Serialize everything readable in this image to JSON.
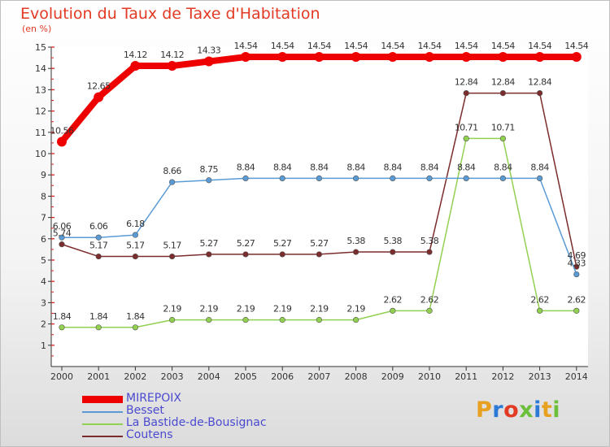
{
  "header": {
    "title": "Evolution du Taux de Taxe d'Habitation",
    "unit": "(en %)"
  },
  "logo": {
    "text": "Proxiti",
    "colors": [
      "#e8a020",
      "#2b7bd6",
      "#e23a24",
      "#6cbf3a",
      "#2b7bd6",
      "#e8a020",
      "#6cbf3a"
    ]
  },
  "chart_data": {
    "type": "line",
    "title": "Evolution du Taux de Taxe d'Habitation",
    "ylabel": "(en %)",
    "xlabel": "",
    "x": [
      "2000",
      "2001",
      "2002",
      "2003",
      "2004",
      "2005",
      "2006",
      "2007",
      "2008",
      "2009",
      "2010",
      "2011",
      "2012",
      "2013",
      "2014"
    ],
    "ylim": [
      0,
      15
    ],
    "yticks": [
      1,
      2,
      3,
      4,
      5,
      6,
      7,
      8,
      9,
      10,
      11,
      12,
      13,
      14,
      15
    ],
    "grid": false,
    "legend": "bottom-left",
    "series": [
      {
        "name": "MIREPOIX",
        "color": "#ee0000",
        "values": [
          10.56,
          12.65,
          14.12,
          14.12,
          14.33,
          14.54,
          14.54,
          14.54,
          14.54,
          14.54,
          14.54,
          14.54,
          14.54,
          14.54,
          14.54
        ],
        "labels": [
          "10.56",
          "12.65",
          "14.12",
          "14.12",
          "14.33",
          "14.54",
          "14.54",
          "14.54",
          "14.54",
          "14.54",
          "14.54",
          "14.54",
          "14.54",
          "14.54",
          "14.54"
        ]
      },
      {
        "name": "Besset",
        "color": "#5b9bd5",
        "values": [
          6.06,
          6.06,
          6.18,
          8.66,
          8.75,
          8.84,
          8.84,
          8.84,
          8.84,
          8.84,
          8.84,
          8.84,
          8.84,
          8.84,
          4.33
        ],
        "labels": [
          "6.06",
          "6.06",
          "6.18",
          "8.66",
          "8.75",
          "8.84",
          "8.84",
          "8.84",
          "8.84",
          "8.84",
          "8.84",
          "8.84",
          "8.84",
          "8.84",
          "4.33"
        ]
      },
      {
        "name": "La Bastide-de-Bousignac",
        "color": "#92d050",
        "values": [
          1.84,
          1.84,
          1.84,
          2.19,
          2.19,
          2.19,
          2.19,
          2.19,
          2.19,
          2.62,
          2.62,
          10.71,
          10.71,
          2.62,
          2.62
        ],
        "labels": [
          "1.84",
          "1.84",
          "1.84",
          "2.19",
          "2.19",
          "2.19",
          "2.19",
          "2.19",
          "2.19",
          "2.62",
          "2.62",
          "10.71",
          "10.71",
          "2.62",
          "2.62"
        ]
      },
      {
        "name": "Coutens",
        "color": "#7b2c2c",
        "values": [
          5.74,
          5.17,
          5.17,
          5.17,
          5.27,
          5.27,
          5.27,
          5.27,
          5.38,
          5.38,
          5.38,
          12.84,
          12.84,
          12.84,
          4.69
        ],
        "labels": [
          "5.74",
          "5.17",
          "5.17",
          "5.17",
          "5.27",
          "5.27",
          "5.27",
          "5.27",
          "5.38",
          "5.38",
          "5.38",
          "12.84",
          "12.84",
          "12.84",
          "4.69"
        ]
      }
    ]
  }
}
